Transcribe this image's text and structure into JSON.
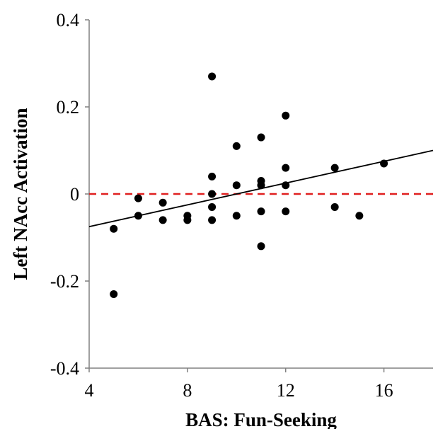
{
  "chart_data": {
    "type": "scatter",
    "title": "",
    "xlabel": "BAS: Fun-Seeking",
    "ylabel": "Left NAcc Activation",
    "xlim": [
      4,
      18
    ],
    "ylim": [
      -0.4,
      0.4
    ],
    "x_ticks": [
      4,
      8,
      12,
      16
    ],
    "x_tick_labels": [
      "4",
      "8",
      "12",
      "16"
    ],
    "y_ticks": [
      0.4,
      0.2,
      0,
      -0.2,
      -0.4
    ],
    "y_tick_labels": [
      "0.4",
      "0.2",
      "0",
      "-0.2",
      "-0.4"
    ],
    "grid": false,
    "series": [
      {
        "points": [
          {
            "x": 5,
            "y": -0.08
          },
          {
            "x": 5,
            "y": -0.23
          },
          {
            "x": 6,
            "y": -0.01
          },
          {
            "x": 6,
            "y": -0.05
          },
          {
            "x": 7,
            "y": -0.02
          },
          {
            "x": 7,
            "y": -0.06
          },
          {
            "x": 8,
            "y": -0.05
          },
          {
            "x": 8,
            "y": -0.06
          },
          {
            "x": 9,
            "y": 0.27
          },
          {
            "x": 9,
            "y": 0.04
          },
          {
            "x": 9,
            "y": 0.0
          },
          {
            "x": 9,
            "y": -0.03
          },
          {
            "x": 9,
            "y": -0.06
          },
          {
            "x": 10,
            "y": 0.11
          },
          {
            "x": 10,
            "y": 0.02
          },
          {
            "x": 10,
            "y": -0.05
          },
          {
            "x": 11,
            "y": 0.13
          },
          {
            "x": 11,
            "y": 0.03
          },
          {
            "x": 11,
            "y": 0.02
          },
          {
            "x": 11,
            "y": -0.04
          },
          {
            "x": 11,
            "y": -0.12
          },
          {
            "x": 12,
            "y": 0.18
          },
          {
            "x": 12,
            "y": 0.06
          },
          {
            "x": 12,
            "y": 0.02
          },
          {
            "x": 12,
            "y": -0.04
          },
          {
            "x": 14,
            "y": 0.06
          },
          {
            "x": 14,
            "y": -0.03
          },
          {
            "x": 15,
            "y": -0.05
          },
          {
            "x": 16,
            "y": 0.07
          }
        ],
        "color": "#000000"
      }
    ],
    "trendline": {
      "x": [
        4,
        18
      ],
      "y": [
        -0.075,
        0.1
      ],
      "color": "#000000",
      "style": "solid"
    },
    "reference_line": {
      "y": 0,
      "color": "#e02020",
      "style": "dashed"
    }
  }
}
